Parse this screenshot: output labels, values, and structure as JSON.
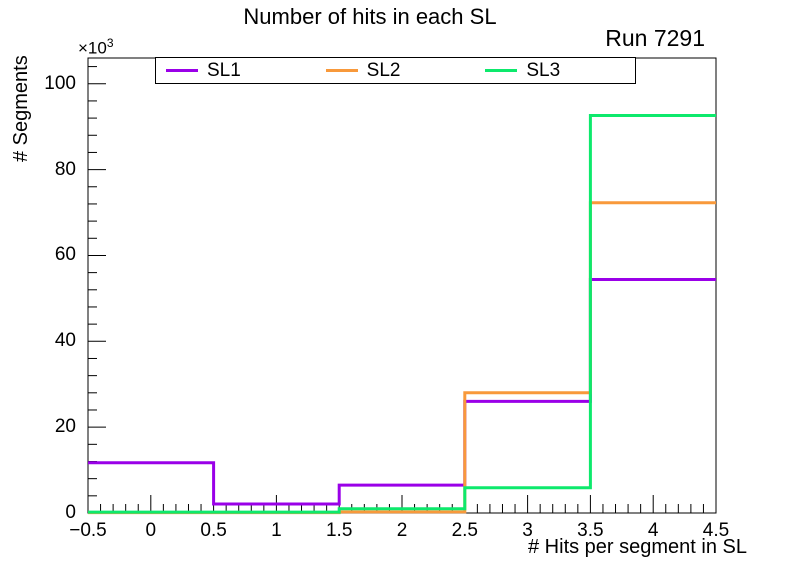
{
  "chart_data": {
    "type": "step-histogram",
    "title": "Number of hits in each SL",
    "annotation": "Run 7291",
    "xlabel": "# Hits per segment in SL",
    "ylabel": "# Segments",
    "y_exponent_base": "×10",
    "y_exponent_power": "3",
    "bin_edges": [
      -0.5,
      0.5,
      1.5,
      2.5,
      3.5,
      4.5
    ],
    "bin_centers": [
      0,
      1,
      2,
      3,
      4
    ],
    "series": [
      {
        "name": "SL1",
        "color": "#9a00e8",
        "values": [
          11700,
          2100,
          6500,
          26000,
          54400
        ]
      },
      {
        "name": "SL2",
        "color": "#f8993b",
        "values": [
          100,
          100,
          250,
          28000,
          72300
        ]
      },
      {
        "name": "SL3",
        "color": "#0de96c",
        "values": [
          200,
          200,
          1000,
          5900,
          92600
        ]
      }
    ],
    "xlim": [
      -0.5,
      4.5
    ],
    "ylim": [
      0,
      106000
    ],
    "x_major_ticks": [
      -0.5,
      0,
      0.5,
      1,
      1.5,
      2,
      2.5,
      3,
      3.5,
      4,
      4.5
    ],
    "x_tick_labels": [
      "−0.5",
      "0",
      "0.5",
      "1",
      "1.5",
      "2",
      "2.5",
      "3",
      "3.5",
      "4",
      "4.5"
    ],
    "x_minor_step": 0.1,
    "y_major_ticks": [
      0,
      20000,
      40000,
      60000,
      80000,
      100000
    ],
    "y_tick_labels": [
      "0",
      "20",
      "40",
      "60",
      "80",
      "100"
    ],
    "y_minor_step": 4000,
    "grid": false,
    "legend_position": "top-inside",
    "frame_color": "#000000",
    "background_color": "#ffffff"
  },
  "legend": {
    "items": [
      {
        "label": "SL1",
        "color": "#9a00e8"
      },
      {
        "label": "SL2",
        "color": "#f8993b"
      },
      {
        "label": "SL3",
        "color": "#0de96c"
      }
    ]
  }
}
